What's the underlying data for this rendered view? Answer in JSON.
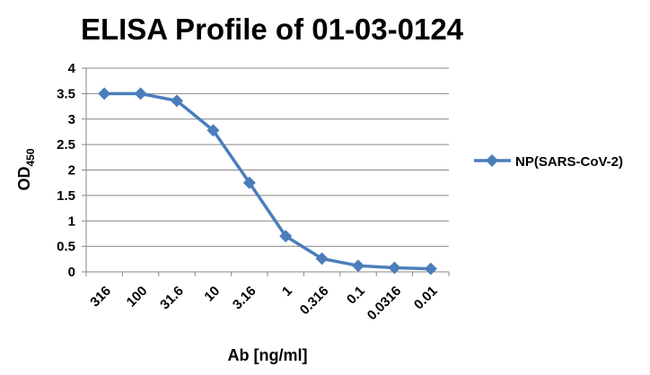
{
  "chart_data": {
    "type": "line",
    "title": "ELISA Profile of 01-03-0124",
    "xlabel": "Ab [ng/ml]",
    "ylabel": "OD",
    "ylabel_subscript": "450",
    "categories": [
      "316",
      "100",
      "31.6",
      "10",
      "3.16",
      "1",
      "0.316",
      "0.1",
      "0.0316",
      "0.01"
    ],
    "series": [
      {
        "name": "NP(SARS-CoV-2)",
        "values": [
          3.5,
          3.5,
          3.36,
          2.78,
          1.75,
          0.7,
          0.26,
          0.12,
          0.08,
          0.06
        ],
        "color": "#4a7ebb",
        "marker": "diamond"
      }
    ],
    "ylim": [
      0,
      4
    ],
    "yticks": [
      "0",
      "0.5",
      "1",
      "1.5",
      "2",
      "2.5",
      "3",
      "3.5",
      "4"
    ],
    "grid": true,
    "legend_position": "right",
    "colors": {
      "grid": "#878787",
      "axis": "#878787",
      "text": "#000000"
    }
  }
}
